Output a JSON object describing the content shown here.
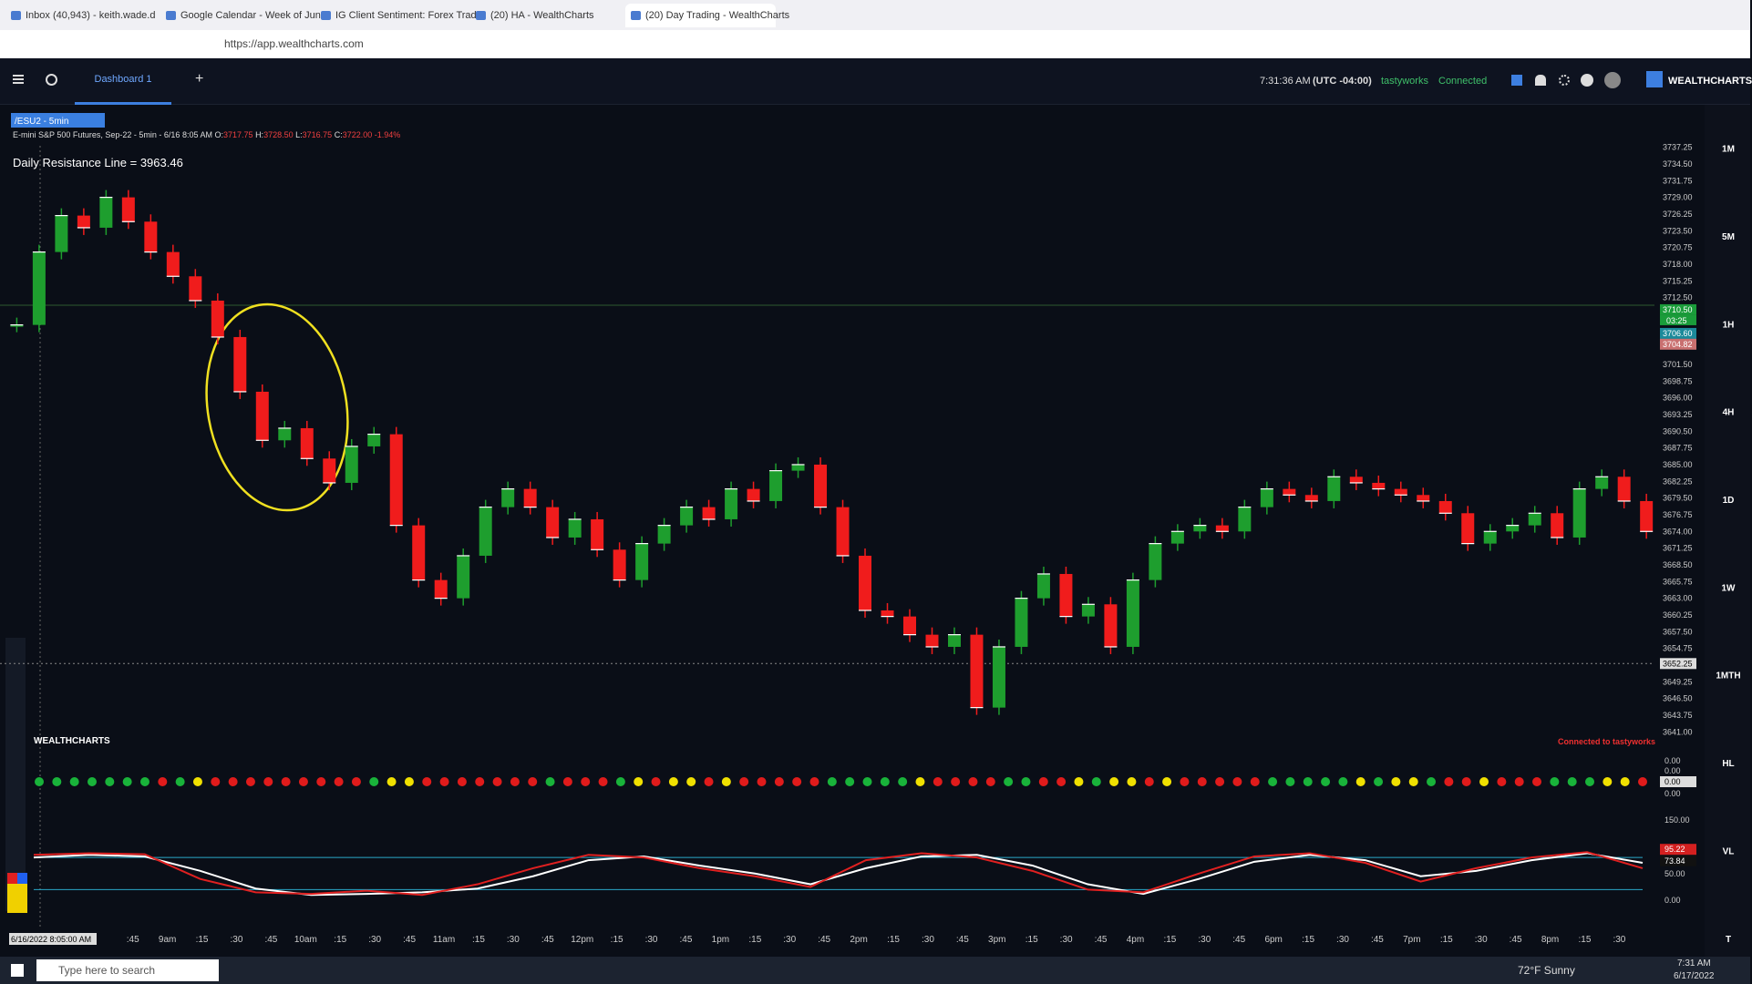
{
  "browser": {
    "tabs": [
      "Inbox (40,943) - keith.wade.d",
      "Google Calendar - Week of Jun",
      "IG Client Sentiment: Forex Trad",
      "(20) HA - WealthCharts",
      "(20) Day Trading - WealthCharts"
    ],
    "url": "https://app.wealthcharts.com"
  },
  "header": {
    "tab": "Dashboard 1",
    "time": "7:31:36 AM",
    "timezone": "(UTC -04:00)",
    "broker": "tastyworks",
    "status": "Connected",
    "brand": "WEALTHCHARTS"
  },
  "chart": {
    "symbol": "/ESU2 - 5min",
    "info": {
      "name": "E-mini S&P 500 Futures, Sep-22",
      "interval": "- 5min - 6/16 8:05 AM",
      "o": "O:",
      "ov": "3717.75",
      "h": "H:",
      "hv": "3728.50",
      "l": "L:",
      "lv": "3716.75",
      "c": "C:",
      "cv": "3722.00",
      "change": "-1.94%"
    },
    "annotation": "Daily Resistance Line = 3963.46",
    "price_ticks": [
      "3737.25",
      "3734.50",
      "3731.75",
      "3729.00",
      "3726.25",
      "3723.50",
      "3720.75",
      "3718.00",
      "3715.25",
      "3712.50",
      "3701.50",
      "3698.75",
      "3696.00",
      "3693.25",
      "3690.50",
      "3687.75",
      "3685.00",
      "3682.25",
      "3679.50",
      "3676.75",
      "3674.00",
      "3671.25",
      "3668.50",
      "3665.75",
      "3663.00",
      "3660.25",
      "3657.50",
      "3654.75",
      "3649.25",
      "3646.50",
      "3643.75",
      "3641.00"
    ],
    "closes": [
      3708,
      3720,
      3726,
      3724,
      3729,
      3725,
      3720,
      3716,
      3712,
      3706,
      3697,
      3689,
      3691,
      3686,
      3682,
      3688,
      3690,
      3675,
      3666,
      3663,
      3670,
      3678,
      3681,
      3678,
      3673,
      3676,
      3671,
      3666,
      3672,
      3675,
      3678,
      3676,
      3681,
      3679,
      3684,
      3685,
      3678,
      3670,
      3661,
      3660,
      3657,
      3655,
      3657,
      3645,
      3655,
      3663,
      3667,
      3660,
      3662,
      3655,
      3666,
      3672,
      3674,
      3675,
      3674,
      3678,
      3681,
      3680,
      3679,
      3683,
      3682,
      3681,
      3680,
      3679,
      3677,
      3672,
      3674,
      3675,
      3677,
      3673,
      3681,
      3683,
      3679,
      3674
    ],
    "up_color": "#1e9e2e",
    "down_color": "#f01c1c",
    "badges": [
      {
        "label": "3710.50",
        "color": "#1a9c3a"
      },
      {
        "label": "3706.60",
        "color": "#1b8a9a"
      },
      {
        "label": "3704.82",
        "color": "#c97070"
      }
    ],
    "countdown": "03:25",
    "crosshair": "3652.25",
    "time_labels": [
      ":45",
      "9am",
      ":15",
      ":30",
      ":45",
      "10am",
      ":15",
      ":30",
      ":45",
      "11am",
      ":15",
      ":30",
      ":45",
      "12pm",
      ":15",
      ":30",
      ":45",
      "1pm",
      ":15",
      ":30",
      ":45",
      "2pm",
      ":15",
      ":30",
      ":45",
      "3pm",
      ":15",
      ":30",
      ":45",
      "4pm",
      ":15",
      ":30",
      ":45",
      "6pm",
      ":15",
      ":30",
      ":45",
      "7pm",
      ":15",
      ":30",
      ":45",
      "8pm",
      ":15",
      ":30"
    ],
    "cursor_date": "6/16/2022 8:05:00 AM",
    "timeframes": [
      "1M",
      "5M",
      "1H",
      "4H",
      "1D",
      "1W",
      "1MTH",
      "HL",
      "VL",
      "T"
    ],
    "watermark": "WEALTHCHARTS",
    "connection": "Connected to tastyworks"
  },
  "signals": {
    "colors": {
      "g": "#19b33a",
      "r": "#e01b1b",
      "y": "#f0e000"
    },
    "dots": "gggggggrgyrrrrrrrrrgyyrrrrrrrgrrrgyryyryrrrrrgggggyrrrrggrrygyyryrrrrrgggggygyygrryrrrgggyyr",
    "axis": [
      "0.00",
      "0.00",
      "0.00",
      "0.00"
    ]
  },
  "oscillator": {
    "axis": [
      "150.00",
      "50.00",
      "0.00"
    ],
    "levels": [
      80,
      20
    ],
    "k": [
      85,
      88,
      86,
      40,
      15,
      12,
      18,
      10,
      30,
      60,
      85,
      80,
      60,
      45,
      25,
      75,
      88,
      80,
      55,
      20,
      15,
      50,
      82,
      88,
      70,
      35,
      60,
      80,
      90,
      60
    ],
    "d": [
      80,
      85,
      82,
      55,
      22,
      10,
      12,
      15,
      22,
      45,
      75,
      82,
      65,
      50,
      30,
      60,
      82,
      85,
      65,
      30,
      12,
      40,
      72,
      85,
      75,
      45,
      55,
      75,
      88,
      70
    ],
    "badges": [
      {
        "label": "95.22",
        "color": "#d42020"
      },
      {
        "label": "73.84",
        "color": "#111"
      }
    ]
  },
  "taskbar": {
    "search": "Type here to search",
    "weather": "72°F Sunny",
    "time": "7:31 AM",
    "date": "6/17/2022"
  }
}
